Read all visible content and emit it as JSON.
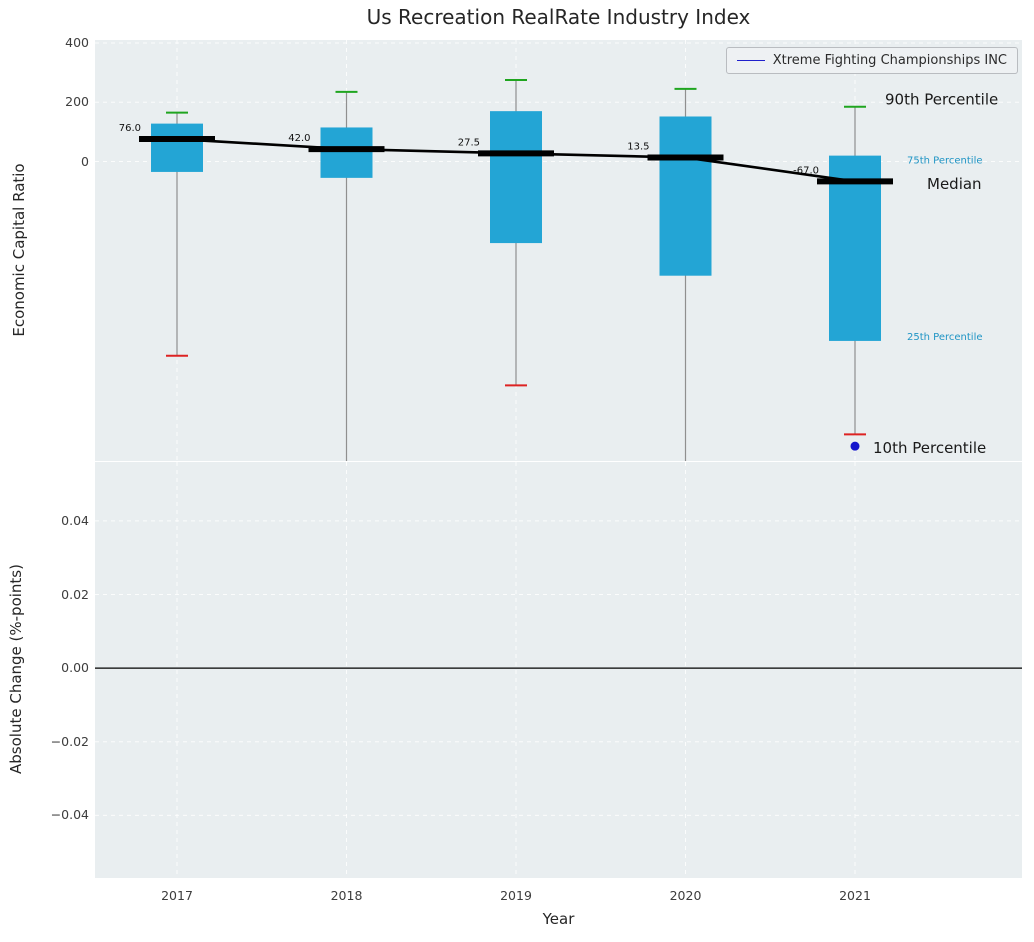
{
  "figure": {
    "title": "Us Recreation RealRate Industry Index",
    "legend": {
      "label": "Xtreme Fighting Championships INC"
    }
  },
  "chart_data": {
    "type": "boxplot",
    "title": "Us Recreation RealRate Industry Index",
    "xlabel": "Year",
    "categories": [
      2017,
      2018,
      2019,
      2020,
      2021
    ],
    "xticks": [
      "2017",
      "2018",
      "2019",
      "2020",
      "2021"
    ],
    "top_panel": {
      "ylabel": "Economic Capital Ratio",
      "ylim": [
        -1010,
        410
      ],
      "yticks": [
        400,
        200,
        0
      ],
      "grid": true,
      "legend_position": "upper right",
      "legend_label": "Xtreme Fighting Championships INC",
      "series": [
        {
          "name": "90th Percentile",
          "role": "whisker_top_cap",
          "values": [
            165,
            235,
            275,
            245,
            185
          ]
        },
        {
          "name": "75th Percentile",
          "role": "box_top",
          "values": [
            128,
            115,
            170,
            152,
            20
          ]
        },
        {
          "name": "Median",
          "role": "median",
          "values": [
            76.0,
            42.0,
            27.5,
            13.5,
            -67.0
          ]
        },
        {
          "name": "25th Percentile",
          "role": "box_bottom",
          "values": [
            -35,
            -55,
            -275,
            -385,
            -605
          ]
        },
        {
          "name": "10th Percentile",
          "role": "whisker_bottom_cap",
          "values": [
            -655,
            -1030,
            -755,
            -1030,
            -920
          ]
        }
      ],
      "median_labels": [
        "76.0",
        "42.0",
        "27.5",
        "13.5",
        "-67.0"
      ],
      "company_point": {
        "x": 2021,
        "value": -960,
        "color": "#1515cc",
        "name": "Xtreme Fighting Championships INC"
      },
      "annotations": [
        {
          "text": "90th Percentile",
          "anchor_value": 210,
          "dx": 30,
          "color": "#1a1a1a",
          "size": 15
        },
        {
          "text": "75th Percentile",
          "anchor_value": 5,
          "dx": 52,
          "color": "#2095c5",
          "size": 10
        },
        {
          "text": "Median",
          "anchor_value": -75,
          "dx": 72,
          "color": "#1a1a1a",
          "size": 15
        },
        {
          "text": "25th Percentile",
          "anchor_value": -590,
          "dx": 52,
          "color": "#2095c5",
          "size": 10
        },
        {
          "text": "10th Percentile",
          "anchor_value": -965,
          "dx": 18,
          "color": "#1a1a1a",
          "size": 15
        }
      ]
    },
    "bottom_panel": {
      "ylabel": "Absolute Change (%-points)",
      "ylim": [
        -0.057,
        0.056
      ],
      "yticks": [
        0.04,
        0.02,
        0.0,
        -0.02,
        -0.04
      ],
      "ytick_labels": [
        "0.04",
        "0.02",
        "0.00",
        "−0.02",
        "−0.04"
      ],
      "zero_line": 0.0,
      "grid": true,
      "series": []
    },
    "colors": {
      "box_fill": "#23a5d5",
      "whisker": "#8f8f8f",
      "cap_top": "#1fa51f",
      "cap_bottom": "#dd2222",
      "median_line": "#000000",
      "company": "#1515cc",
      "plot_bg": "#e9eef0",
      "grid": "#ffffff",
      "zero_line": "#000000"
    }
  }
}
